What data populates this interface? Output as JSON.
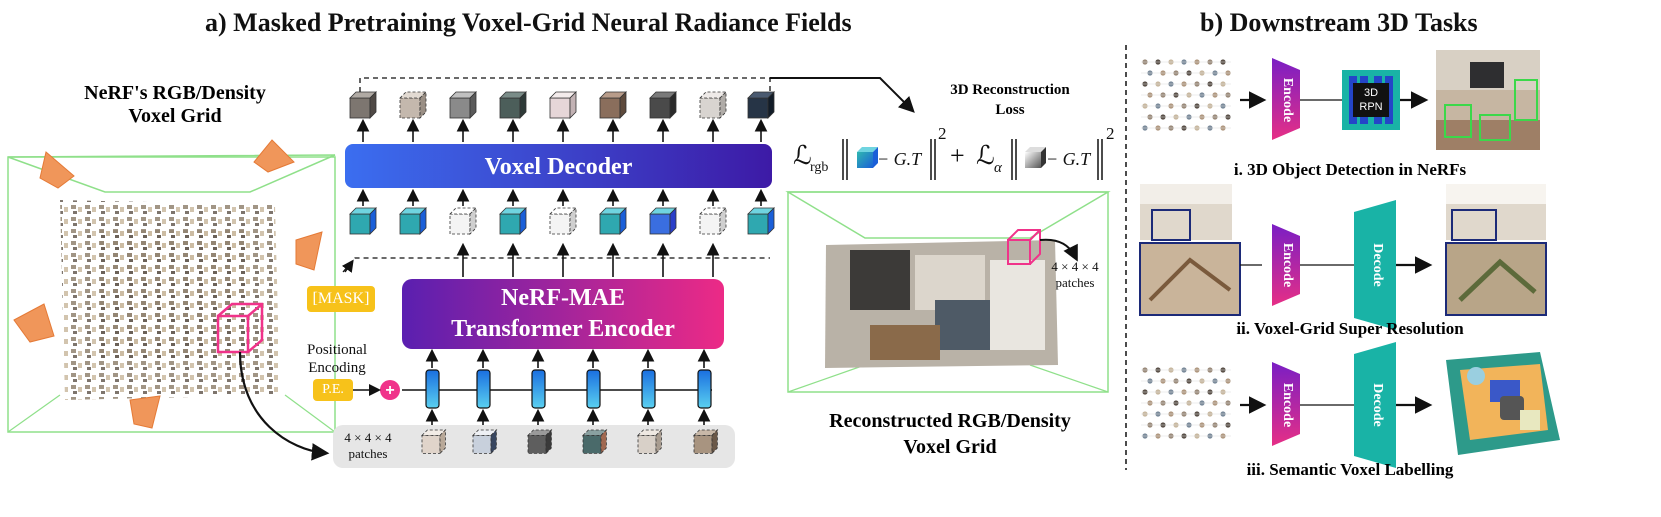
{
  "left": {
    "title": "a) Masked Pretraining Voxel-Grid Neural Radiance Fields",
    "grid_label_line1": "NeRF's RGB/Density",
    "grid_label_line2": "Voxel Grid",
    "recon_loss_line1": "3D Reconstruction",
    "recon_loss_line2": "Loss",
    "decoder_label": "Voxel Decoder",
    "encoder_label_line1": "NeRF-MAE",
    "encoder_label_line2": "Transformer Encoder",
    "mask_chip": "[MASK]",
    "pe_chip": "P.E.",
    "pos_enc_line1": "Positional",
    "pos_enc_line2": "Encoding",
    "patches_bottom_line1": "4 × 4 × 4",
    "patches_bottom_line2": "patches",
    "patches_right_line1": "4 × 4 × 4",
    "patches_right_line2": "patches",
    "recon_label_line1": "Reconstructed RGB/Density",
    "recon_label_line2": "Voxel Grid",
    "loss": {
      "l_rgb": "ℒ",
      "rgb_sub": "rgb",
      "l_alpha": "ℒ",
      "alpha_sub": "α",
      "gt1": "− G.T",
      "gt2": "− G.T",
      "plus": "+",
      "sq1": "2",
      "sq2": "2"
    }
  },
  "right": {
    "title": "b) Downstream 3D Tasks",
    "encode": "Encode",
    "decode": "Decode",
    "rpn_line1": "3D",
    "rpn_line2": "RPN",
    "task1": "i. 3D Object Detection in NeRFs",
    "task2": "ii. Voxel-Grid Super Resolution",
    "task3": "iii. Semantic Voxel Labelling"
  },
  "colors": {
    "decoder_from": "#3b6ef0",
    "decoder_to": "#3d1aa6",
    "encoder_from": "#5a1fb0",
    "encoder_to": "#ec2a86",
    "chip": "#f7c21a",
    "pink": "#f0338a",
    "teal": "#19b3a6",
    "encode_from": "#7a1ec4",
    "encode_to": "#e62f86",
    "green_box": "#8fe08a",
    "cone": "#f0965a"
  }
}
